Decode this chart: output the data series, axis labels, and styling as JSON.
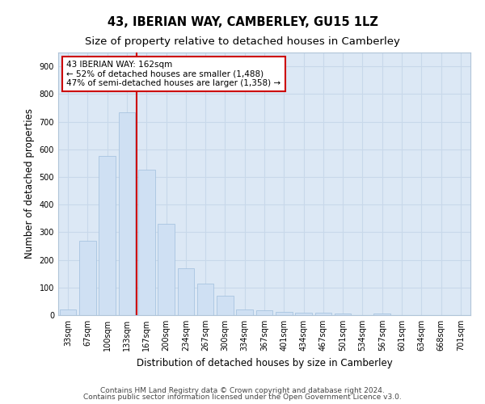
{
  "title": "43, IBERIAN WAY, CAMBERLEY, GU15 1LZ",
  "subtitle": "Size of property relative to detached houses in Camberley",
  "xlabel": "Distribution of detached houses by size in Camberley",
  "ylabel": "Number of detached properties",
  "bar_labels": [
    "33sqm",
    "67sqm",
    "100sqm",
    "133sqm",
    "167sqm",
    "200sqm",
    "234sqm",
    "267sqm",
    "300sqm",
    "334sqm",
    "367sqm",
    "401sqm",
    "434sqm",
    "467sqm",
    "501sqm",
    "534sqm",
    "567sqm",
    "601sqm",
    "634sqm",
    "668sqm",
    "701sqm"
  ],
  "bar_values": [
    20,
    270,
    575,
    735,
    525,
    330,
    170,
    115,
    70,
    20,
    18,
    12,
    10,
    8,
    7,
    0,
    7,
    0,
    0,
    0,
    0
  ],
  "bar_color": "#cfe0f3",
  "bar_edgecolor": "#a8c4e0",
  "vline_color": "#cc0000",
  "annotation_text": "43 IBERIAN WAY: 162sqm\n← 52% of detached houses are smaller (1,488)\n47% of semi-detached houses are larger (1,358) →",
  "annotation_box_facecolor": "#ffffff",
  "annotation_box_edgecolor": "#cc0000",
  "grid_color": "#c8d8ea",
  "fig_facecolor": "#ffffff",
  "plot_facecolor": "#dce8f5",
  "ylim": [
    0,
    950
  ],
  "yticks": [
    0,
    100,
    200,
    300,
    400,
    500,
    600,
    700,
    800,
    900
  ],
  "title_fontsize": 10.5,
  "subtitle_fontsize": 9.5,
  "xlabel_fontsize": 8.5,
  "ylabel_fontsize": 8.5,
  "tick_fontsize": 7,
  "annotation_fontsize": 7.5,
  "footer_fontsize": 6.5
}
